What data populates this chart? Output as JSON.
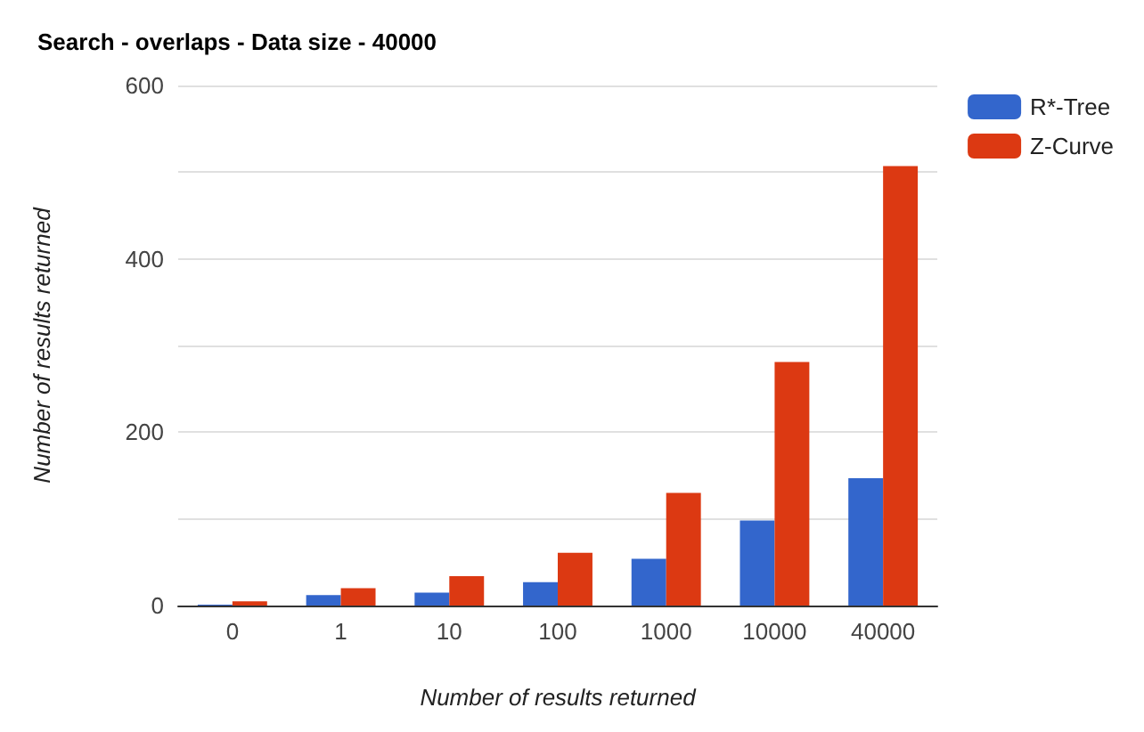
{
  "chart_data": {
    "type": "bar",
    "title": "Search - overlaps - Data size - 40000",
    "xlabel": "Number of results returned",
    "ylabel": "Number of results returned",
    "categories": [
      "0",
      "1",
      "10",
      "100",
      "1000",
      "10000",
      "40000"
    ],
    "series": [
      {
        "name": "R*-Tree",
        "color": "#3366cc",
        "values": [
          1,
          12,
          15,
          27,
          54,
          98,
          147
        ]
      },
      {
        "name": "Z-Curve",
        "color": "#dc3912",
        "values": [
          5,
          20,
          34,
          61,
          130,
          281,
          507
        ]
      }
    ],
    "ylim": [
      0,
      600
    ],
    "yticks": [
      0,
      {
        "value": 100,
        "label": null
      },
      200,
      {
        "value": 300,
        "label": null
      },
      400,
      {
        "value": 500,
        "label": null
      },
      600
    ],
    "grid": "y",
    "legend": "top right"
  }
}
